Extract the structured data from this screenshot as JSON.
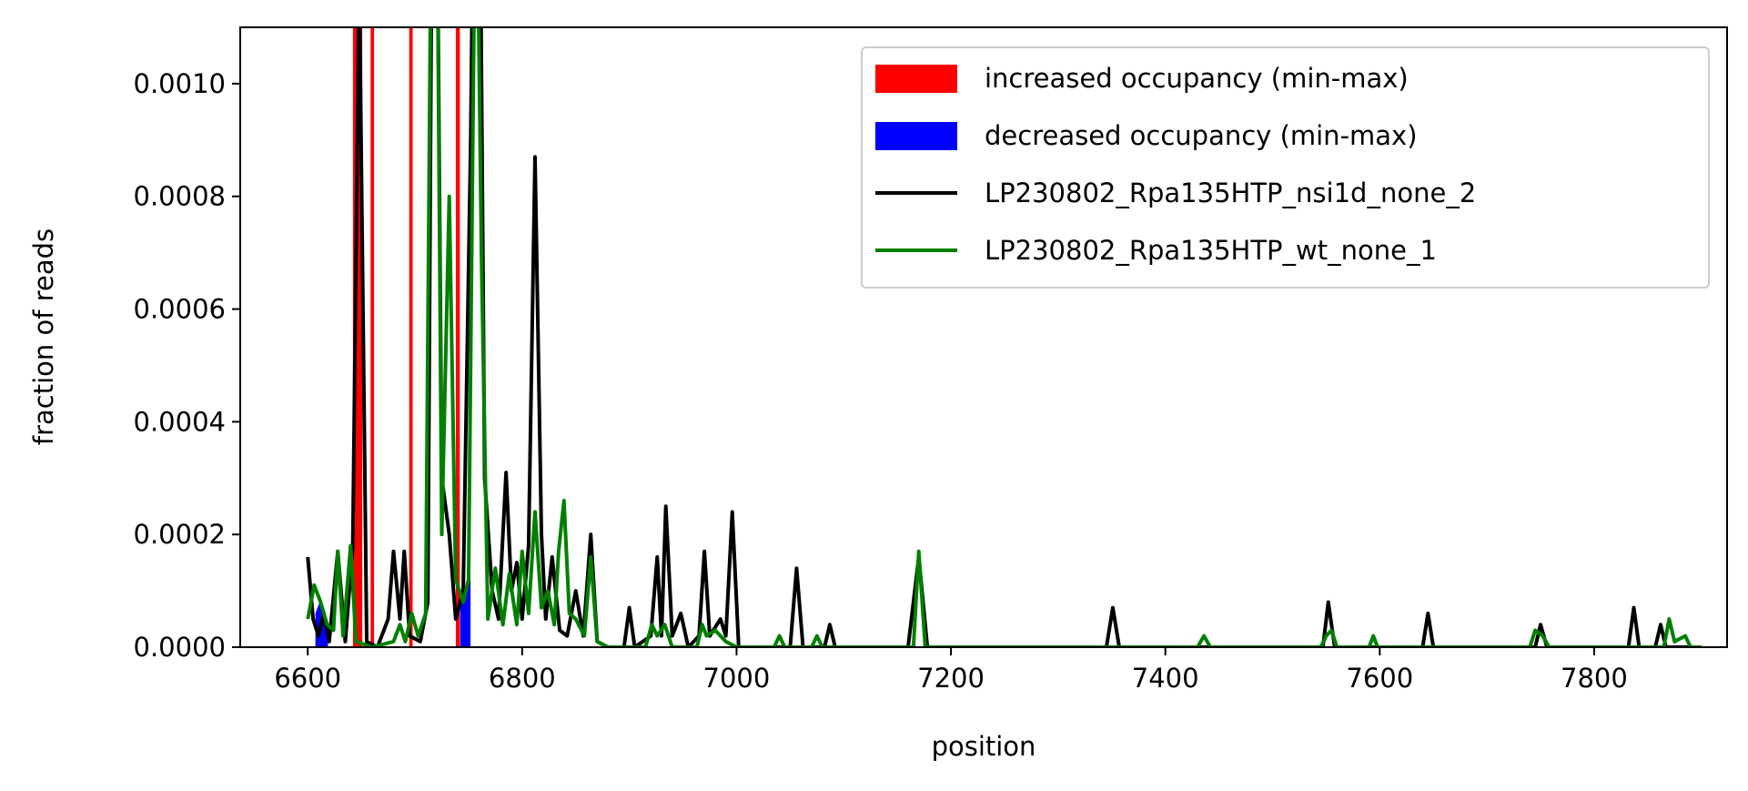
{
  "chart_data": {
    "type": "line",
    "xlabel": "position",
    "ylabel": "fraction of reads",
    "xlim": [
      6537,
      7924
    ],
    "ylim": [
      0,
      0.0011
    ],
    "xticks": [
      6600,
      6800,
      7000,
      7200,
      7400,
      7600,
      7800
    ],
    "yticks": [
      {
        "value": 0,
        "label": "0.0000"
      },
      {
        "value": 0.0002,
        "label": "0.0002"
      },
      {
        "value": 0.0004,
        "label": "0.0004"
      },
      {
        "value": 0.0006,
        "label": "0.0006"
      },
      {
        "value": 0.0008,
        "label": "0.0008"
      },
      {
        "value": 0.001,
        "label": "0.0010"
      }
    ],
    "legend": "upper right",
    "fills": [
      {
        "name": "increased occupancy (min-max)",
        "color": "#ff0000",
        "regions": [
          {
            "x": [
              6643,
              6646,
              6650
            ],
            "lower": [
              0,
              0,
              0
            ],
            "upper": [
              0.0015,
              0.002,
              0.0015
            ]
          },
          {
            "x": [
              6659.5,
              6661
            ],
            "lower": [
              0,
              0
            ],
            "upper": [
              0.002,
              0.002
            ]
          },
          {
            "x": [
              6695.5,
              6697
            ],
            "lower": [
              0,
              0
            ],
            "upper": [
              0.002,
              0.002
            ]
          },
          {
            "x": [
              6739,
              6741
            ],
            "lower": [
              0,
              0
            ],
            "upper": [
              0.002,
              0.002
            ]
          }
        ]
      },
      {
        "name": "decreased occupancy (min-max)",
        "color": "#0000ff",
        "regions": [
          {
            "x": [
              6608,
              6612,
              6618
            ],
            "lower": [
              0,
              0,
              0
            ],
            "upper": [
              6e-05,
              8e-05,
              4e-05
            ]
          },
          {
            "x": [
              6743,
              6747,
              6751
            ],
            "lower": [
              0,
              0,
              0
            ],
            "upper": [
              8e-05,
              0.0001,
              0.00012
            ]
          }
        ]
      }
    ],
    "series": [
      {
        "name": "LP230802_Rpa135HTP_nsi1d_none_2",
        "color": "#000000",
        "x": [
          6600,
          6605,
          6610,
          6615,
          6620,
          6628,
          6635,
          6642,
          6648,
          6655,
          6665,
          6675,
          6680,
          6686,
          6690,
          6695,
          6705,
          6712,
          6718,
          6725,
          6732,
          6738,
          6745,
          6752,
          6758,
          6765,
          6772,
          6778,
          6785,
          6790,
          6795,
          6800,
          6806,
          6812,
          6818,
          6822,
          6828,
          6835,
          6842,
          6850,
          6857,
          6864,
          6870,
          6880,
          6895,
          6900,
          6905,
          6920,
          6926,
          6930,
          6934,
          6940,
          6948,
          6955,
          6965,
          6970,
          6975,
          6985,
          6990,
          6996,
          7002,
          7050,
          7056,
          7062,
          7082,
          7087,
          7092,
          7160,
          7170,
          7178,
          7345,
          7351,
          7357,
          7547,
          7552,
          7558,
          7640,
          7645,
          7650,
          7745,
          7750,
          7756,
          7832,
          7837,
          7842,
          7857,
          7862,
          7867,
          7900
        ],
        "values": [
          0.00016,
          5e-05,
          2e-05,
          6e-05,
          1e-05,
          0.00017,
          1e-05,
          0.00018,
          0.0012,
          1e-05,
          0,
          5e-05,
          0.00017,
          5e-05,
          0.00017,
          2e-05,
          1e-05,
          8e-05,
          0.002,
          0.0003,
          0.0002,
          5e-05,
          0.0001,
          0.0009,
          0.002,
          0.0003,
          0.0001,
          5e-05,
          0.00031,
          0.0001,
          0.00015,
          5e-05,
          0.00018,
          0.00087,
          0.0002,
          5e-05,
          0.00016,
          3e-05,
          2e-05,
          0.0001,
          2e-05,
          0.0002,
          1e-05,
          0,
          0,
          7e-05,
          0,
          2e-05,
          0.00016,
          2e-05,
          0.00025,
          2e-05,
          6e-05,
          0,
          2e-05,
          0.00017,
          2e-05,
          5e-05,
          2e-05,
          0.00024,
          0,
          0,
          0.00014,
          0,
          0,
          4e-05,
          0,
          0,
          0.00016,
          0,
          0,
          7e-05,
          0,
          0,
          8e-05,
          0,
          0,
          6e-05,
          0,
          0,
          4e-05,
          0,
          0,
          7e-05,
          0,
          0,
          4e-05,
          0,
          0
        ]
      },
      {
        "name": "LP230802_Rpa135HTP_wt_none_1",
        "color": "#008000",
        "x": [
          6600,
          6606,
          6612,
          6618,
          6624,
          6628,
          6633,
          6640,
          6645,
          6660,
          6680,
          6686,
          6691,
          6697,
          6703,
          6710,
          6718,
          6725,
          6732,
          6738,
          6745,
          6750,
          6757,
          6762,
          6768,
          6775,
          6782,
          6788,
          6795,
          6800,
          6806,
          6812,
          6818,
          6824,
          6830,
          6834,
          6839,
          6844,
          6850,
          6858,
          6864,
          6870,
          6880,
          6915,
          6921,
          6926,
          6933,
          6940,
          6963,
          6968,
          6972,
          6980,
          6990,
          7000,
          7035,
          7040,
          7045,
          7070,
          7075,
          7080,
          7165,
          7170,
          7176,
          7430,
          7436,
          7442,
          7545,
          7550,
          7555,
          7560,
          7590,
          7594,
          7598,
          7740,
          7745,
          7752,
          7758,
          7865,
          7870,
          7875,
          7885,
          7890,
          7900
        ],
        "values": [
          5e-05,
          0.00011,
          8e-05,
          4e-05,
          3e-05,
          0.00017,
          2e-05,
          0.00018,
          1e-05,
          0,
          1e-05,
          4e-05,
          1e-05,
          6e-05,
          2e-05,
          6e-05,
          0.002,
          0.0002,
          0.0008,
          0.00012,
          8e-05,
          0.00012,
          0.0015,
          0.0007,
          5e-05,
          0.00014,
          4e-05,
          0.00013,
          4e-05,
          0.00017,
          6e-05,
          0.00024,
          7e-05,
          0.0001,
          4e-05,
          0.00017,
          0.00026,
          6e-05,
          5e-05,
          2e-05,
          0.00016,
          1e-05,
          0,
          0,
          4e-05,
          2e-05,
          4e-05,
          0,
          0,
          4e-05,
          2e-05,
          3e-05,
          1e-05,
          0,
          0,
          2e-05,
          0,
          0,
          2e-05,
          0,
          0,
          0.00017,
          0,
          0,
          2e-05,
          0,
          0,
          2e-05,
          3e-05,
          0,
          0,
          2e-05,
          0,
          0,
          3e-05,
          2e-05,
          0,
          0,
          5e-05,
          1e-05,
          2e-05,
          0,
          0
        ]
      }
    ]
  }
}
